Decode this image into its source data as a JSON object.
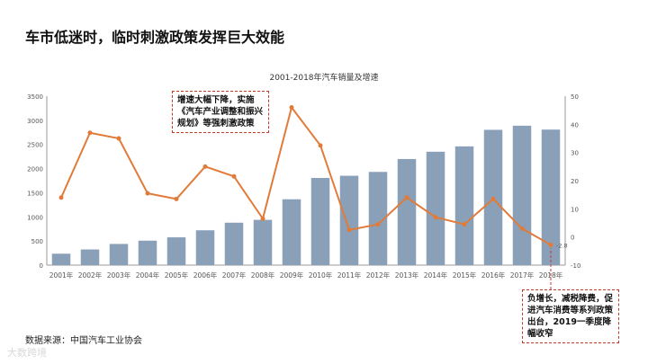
{
  "slide": {
    "title": "车市低迷时，临时刺激政策发挥巨大效能",
    "source": "数据来源：中国汽车工业协会",
    "watermark": "大数跨境"
  },
  "callouts": [
    "增速大幅下降，实施《汽车产业调整和振兴规划》等强刺激政策",
    "负增长，减税降费，促进汽车消费等系列政策出台，2019一季度降幅收窄"
  ],
  "chart_data": {
    "type": "bar",
    "title": "2001-2018年汽车销量及增速",
    "categories": [
      "2001年",
      "2002年",
      "2003年",
      "2004年",
      "2005年",
      "2006年",
      "2007年",
      "2008年",
      "2009年",
      "2010年",
      "2011年",
      "2012年",
      "2013年",
      "2014年",
      "2015年",
      "2016年",
      "2017年",
      "2018年"
    ],
    "series": [
      {
        "kind": "bar",
        "axis": "left",
        "values": [
          237,
          325,
          439,
          507,
          576,
          722,
          879,
          938,
          1364,
          1806,
          1851,
          1931,
          2198,
          2349,
          2460,
          2803,
          2888,
          2808
        ]
      },
      {
        "kind": "line",
        "axis": "right",
        "values": [
          14,
          37,
          35,
          15.5,
          13.5,
          25,
          21.5,
          6.5,
          46,
          32.5,
          2.5,
          4.5,
          14,
          7,
          4.5,
          13.5,
          3,
          -2.8
        ]
      }
    ],
    "y_left": {
      "min": 0,
      "max": 3500,
      "ticks": [
        0,
        500,
        1000,
        1500,
        2000,
        2500,
        3000,
        3500
      ]
    },
    "y_right": {
      "min": -10,
      "max": 50,
      "ticks": [
        -10,
        0,
        10,
        20,
        30,
        40,
        50
      ]
    },
    "last_point_label": "-2.8",
    "colors": {
      "bar": "#8aa0b8",
      "line": "#e07b39",
      "axis": "#999999"
    }
  }
}
